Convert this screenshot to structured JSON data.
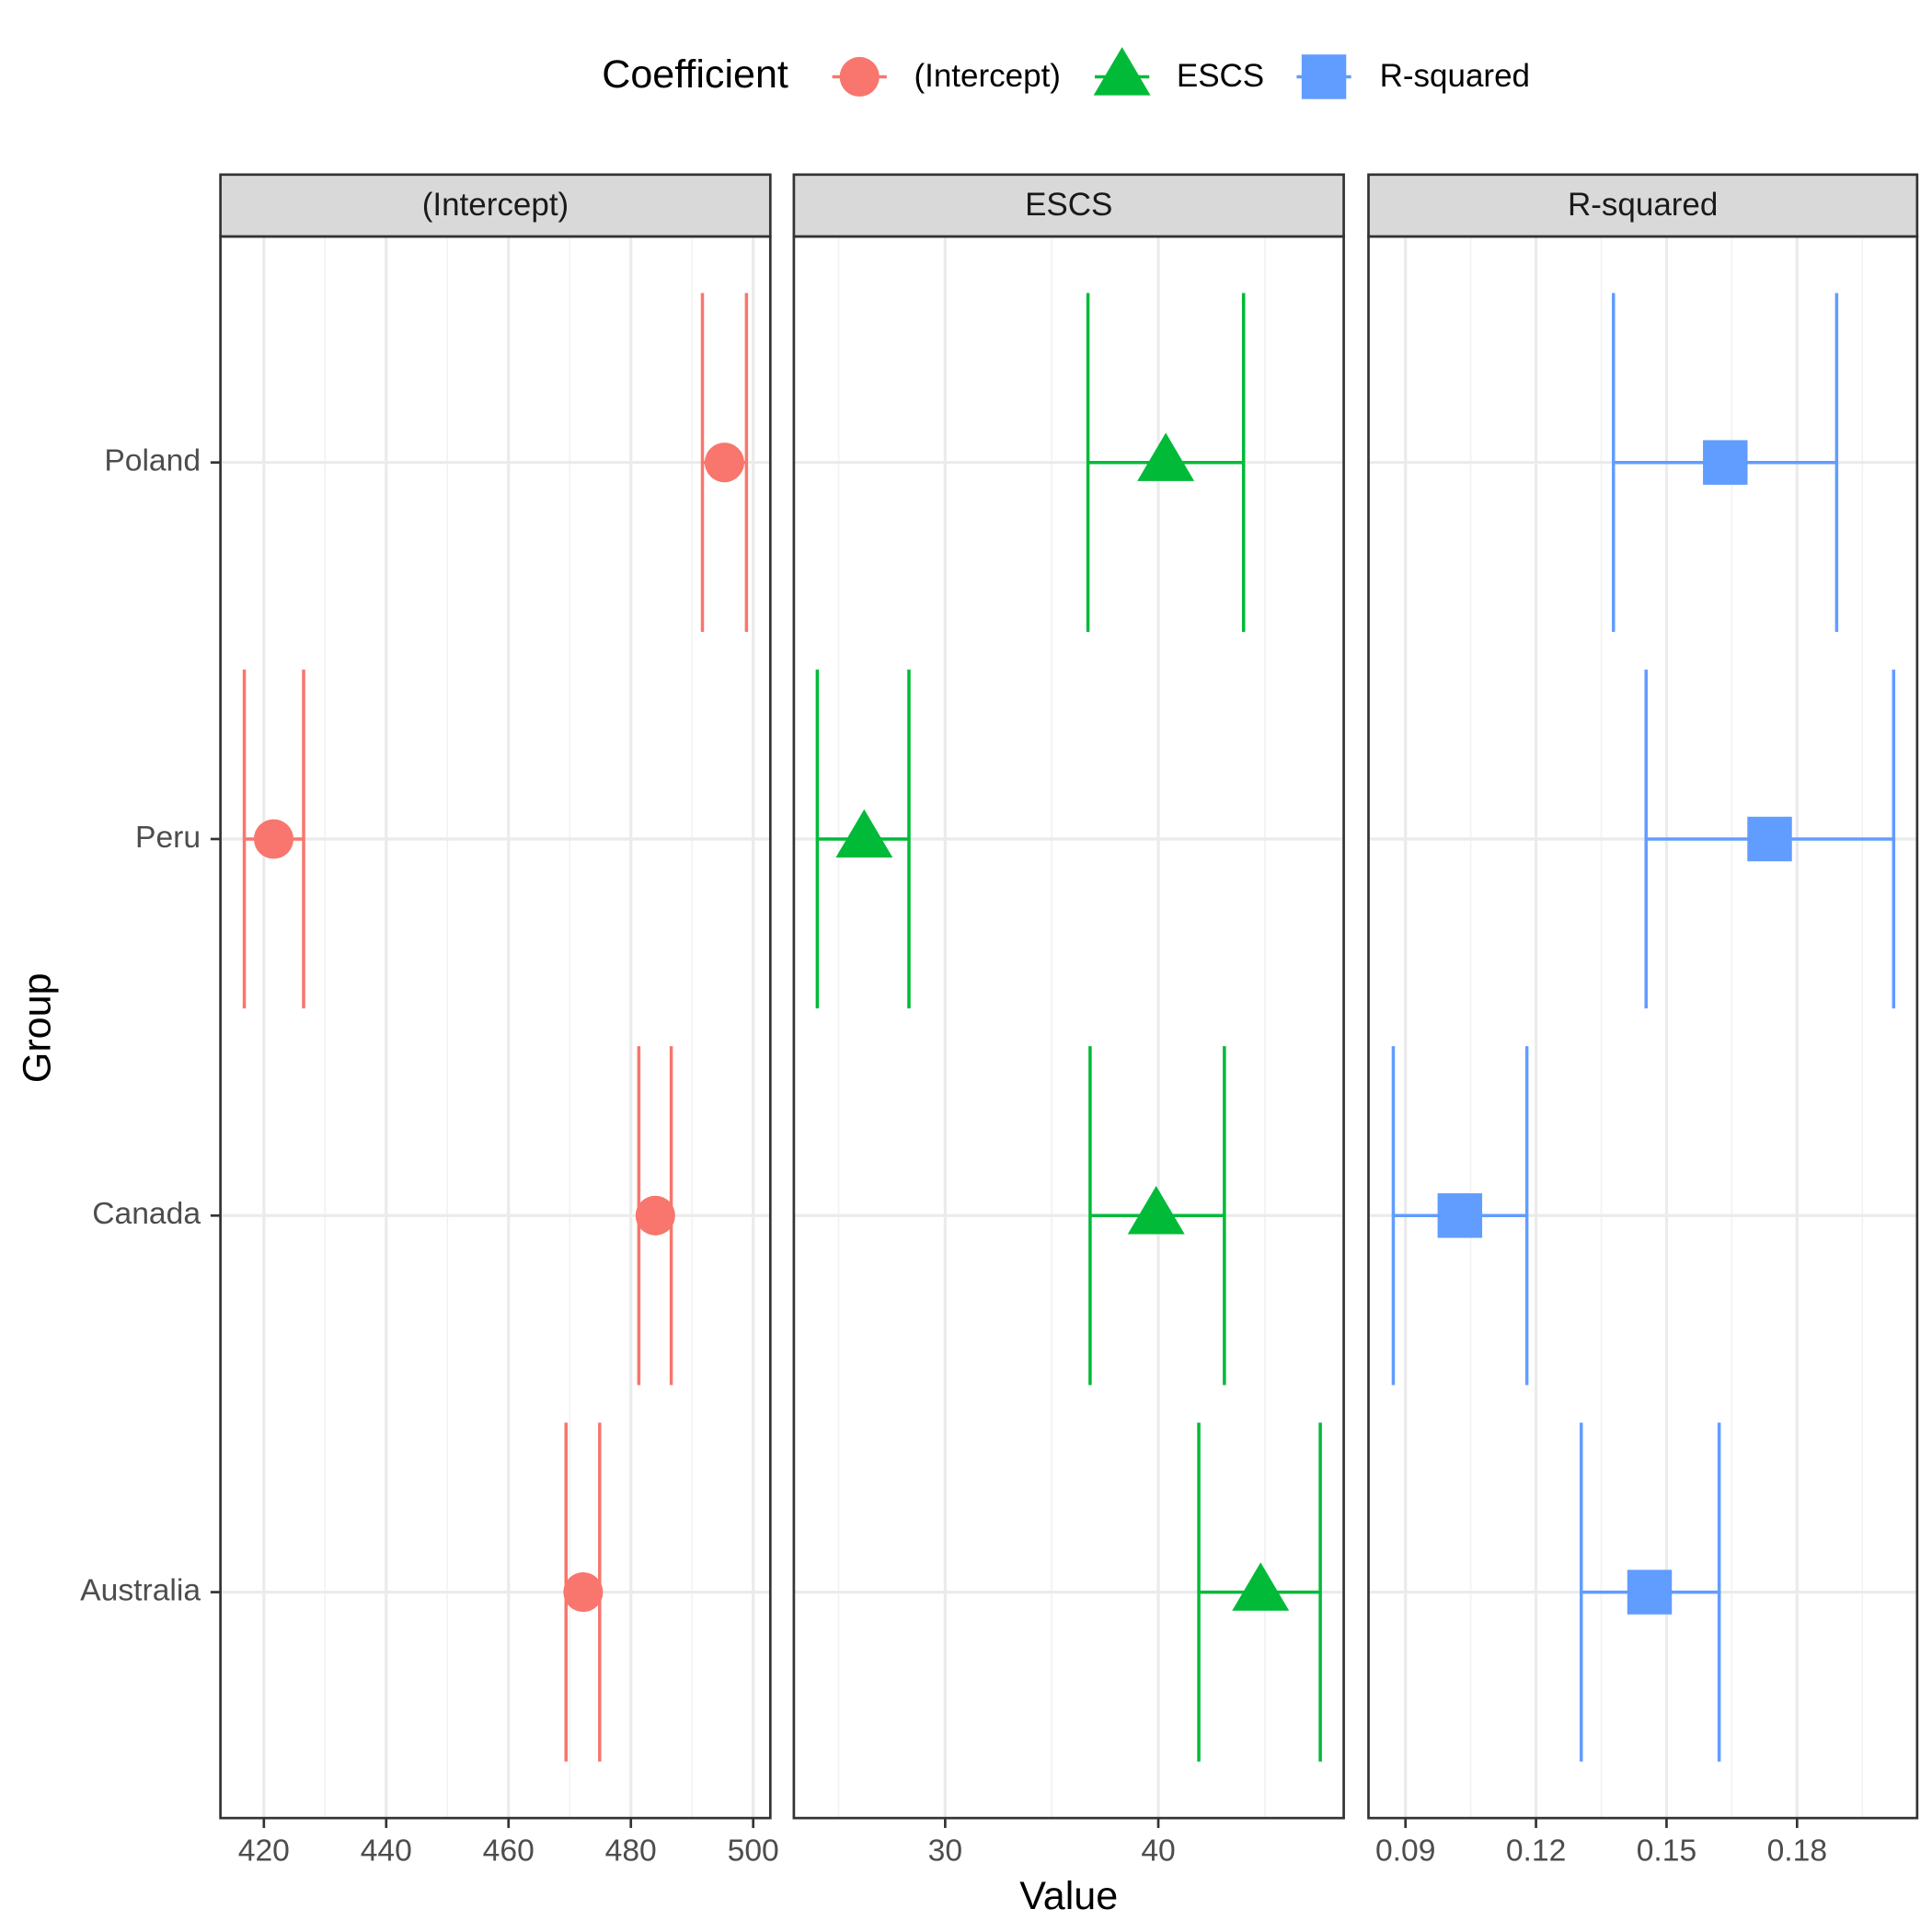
{
  "legend": {
    "title": "Coefficient",
    "position": "top"
  },
  "x_label": "Value",
  "y_label": "Group",
  "chart_data": [
    {
      "type": "errorbar",
      "title": "(Intercept)",
      "categories": [
        "Poland",
        "Peru",
        "Canada",
        "Australia"
      ],
      "series": [
        {
          "name": "(Intercept)",
          "color": "#F8766D",
          "marker": "circle",
          "values": [
            495.3,
            421.6,
            484.0,
            472.2
          ],
          "lower": [
            491.7,
            416.8,
            481.3,
            469.4
          ],
          "upper": [
            498.9,
            426.5,
            486.6,
            474.9
          ]
        }
      ],
      "xlim": [
        412.9,
        502.8
      ],
      "xticks": [
        420,
        440,
        460,
        480,
        500
      ],
      "grid": true
    },
    {
      "type": "errorbar",
      "title": "ESCS",
      "categories": [
        "Poland",
        "Peru",
        "Canada",
        "Australia"
      ],
      "series": [
        {
          "name": "ESCS",
          "color": "#00BA38",
          "marker": "triangle",
          "values": [
            40.35,
            26.2,
            39.9,
            44.8
          ],
          "lower": [
            36.7,
            24.0,
            36.8,
            41.9
          ],
          "upper": [
            44.0,
            28.3,
            43.1,
            47.6
          ]
        }
      ],
      "xlim": [
        22.9,
        48.7
      ],
      "xticks": [
        30,
        40
      ],
      "grid": true
    },
    {
      "type": "errorbar",
      "title": "R-squared",
      "categories": [
        "Poland",
        "Peru",
        "Canada",
        "Australia"
      ],
      "series": [
        {
          "name": "R-squared",
          "color": "#619CFF",
          "marker": "square",
          "values": [
            0.1635,
            0.1737,
            0.1025,
            0.1461
          ],
          "lower": [
            0.1378,
            0.1453,
            0.0872,
            0.1304
          ],
          "upper": [
            0.1891,
            0.2022,
            0.1179,
            0.1621
          ]
        }
      ],
      "xlim": [
        0.0815,
        0.2076
      ],
      "xticks": [
        0.09,
        0.12,
        0.15,
        0.18
      ],
      "grid": true
    }
  ]
}
